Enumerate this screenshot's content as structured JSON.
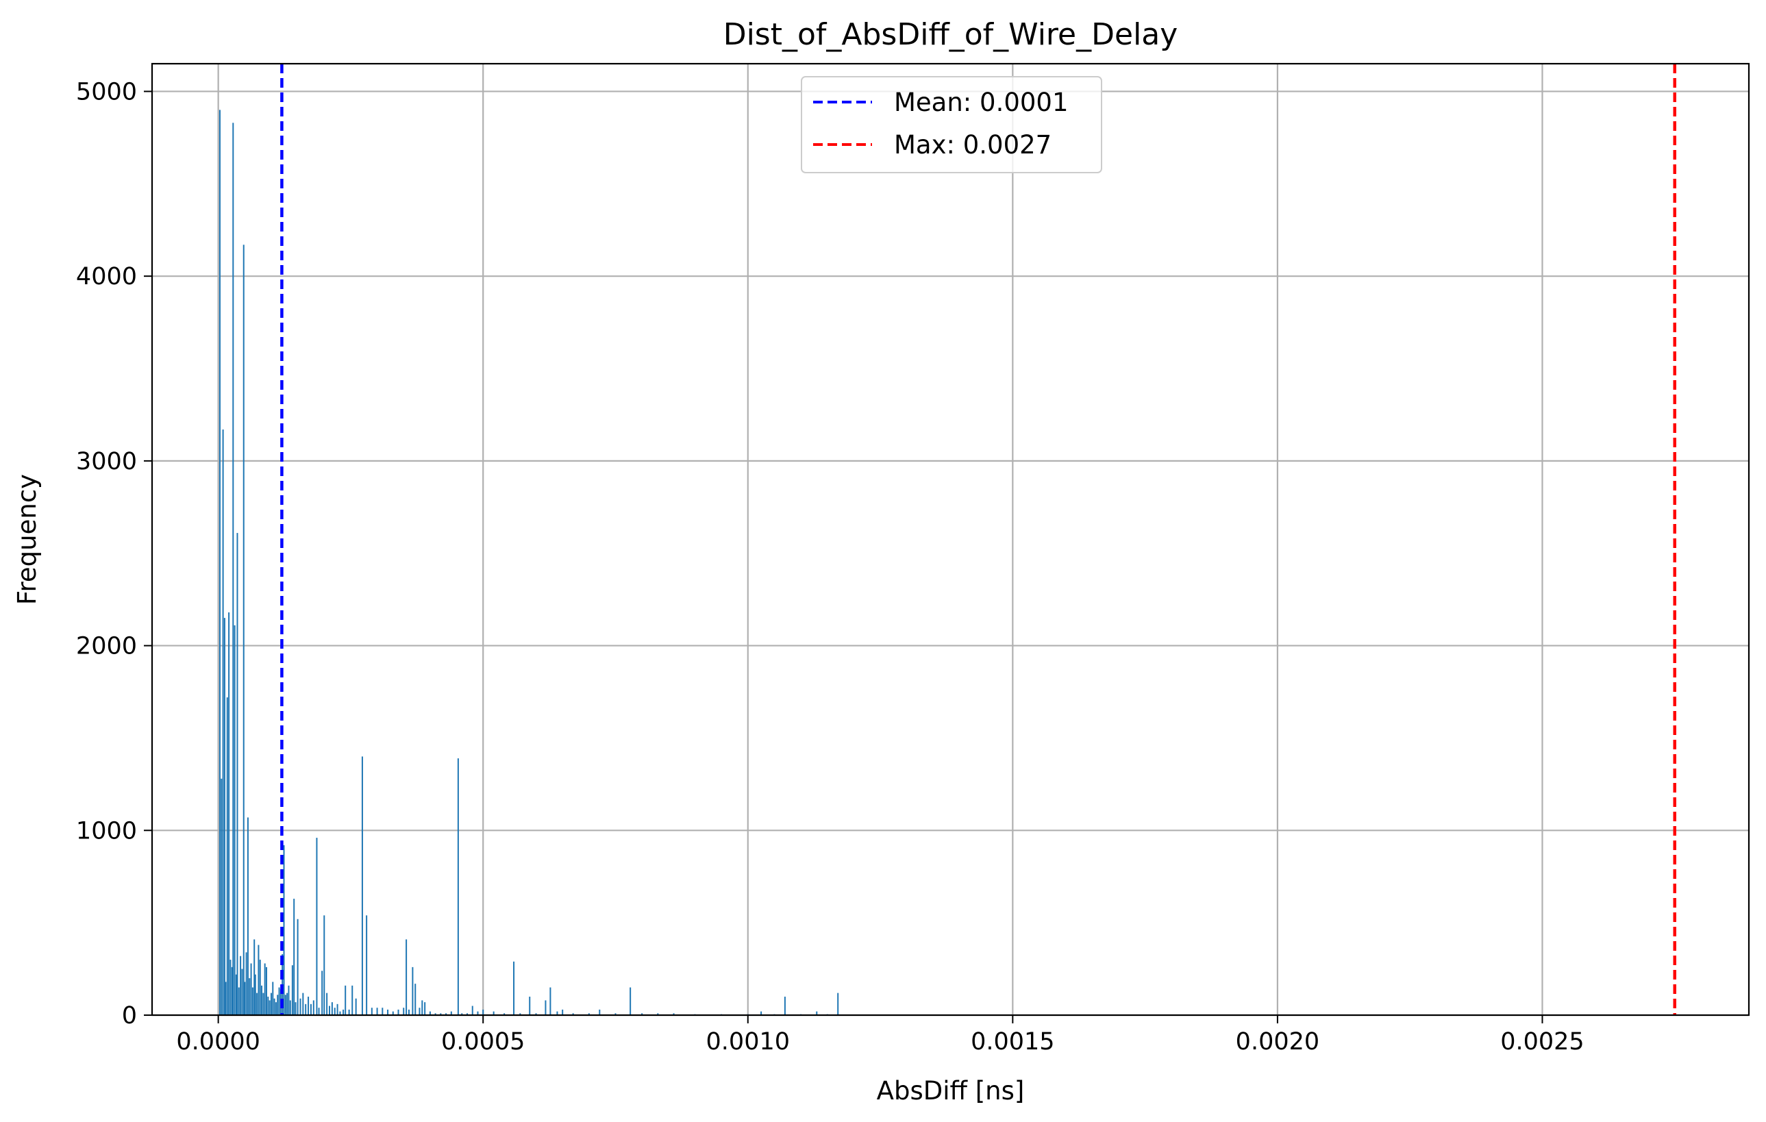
{
  "chart_data": {
    "type": "bar",
    "title": "Dist_of_AbsDiff_of_Wire_Delay",
    "xlabel": "AbsDiff [ns]",
    "ylabel": "Frequency",
    "xlim": [
      -0.000125,
      0.00289
    ],
    "ylim": [
      0,
      5150
    ],
    "xticks": [
      0.0,
      0.0005,
      0.001,
      0.0015,
      0.002,
      0.0025
    ],
    "xtick_labels": [
      "0.0000",
      "0.0005",
      "0.0010",
      "0.0015",
      "0.0020",
      "0.0025"
    ],
    "yticks": [
      0,
      1000,
      2000,
      3000,
      4000,
      5000
    ],
    "ytick_labels": [
      "0",
      "1000",
      "2000",
      "3000",
      "4000",
      "5000"
    ],
    "grid": true,
    "bar_color": "#1f77b4",
    "bar_width": 2.5e-06,
    "x": [
      3e-06,
      6e-06,
      9e-06,
      1.2e-05,
      1.4e-05,
      1.7e-05,
      2e-05,
      2.3e-05,
      2.6e-05,
      2.8e-05,
      3.1e-05,
      3.4e-05,
      3.6e-05,
      3.9e-05,
      4.2e-05,
      4.5e-05,
      4.8e-05,
      5e-05,
      5.3e-05,
      5.6e-05,
      5.9e-05,
      6.2e-05,
      6.5e-05,
      6.8e-05,
      7e-05,
      7.3e-05,
      7.6e-05,
      7.9e-05,
      8.2e-05,
      8.5e-05,
      8.8e-05,
      9.1e-05,
      9.4e-05,
      9.7e-05,
      0.0001,
      0.000103,
      0.000106,
      0.000109,
      0.000112,
      0.000115,
      0.000118,
      0.000121,
      0.000124,
      0.000127,
      0.00013,
      0.000133,
      0.000136,
      0.00014,
      0.000143,
      0.000146,
      0.00015,
      0.000155,
      0.00016,
      0.000165,
      0.00017,
      0.000175,
      0.00018,
      0.000186,
      0.00019,
      0.000196,
      0.0002,
      0.000205,
      0.00021,
      0.000215,
      0.00022,
      0.000225,
      0.00023,
      0.000236,
      0.00024,
      0.000247,
      0.000253,
      0.00026,
      0.000272,
      0.00028,
      0.00029,
      0.0003,
      0.00031,
      0.00032,
      0.00033,
      0.00034,
      0.00035,
      0.000355,
      0.00036,
      0.000367,
      0.000372,
      0.00038,
      0.000385,
      0.00039,
      0.0004,
      0.00041,
      0.00042,
      0.00043,
      0.00044,
      0.000453,
      0.00046,
      0.00047,
      0.00048,
      0.00049,
      0.0005,
      0.00052,
      0.00054,
      0.000558,
      0.00057,
      0.000588,
      0.0006,
      0.000618,
      0.000627,
      0.00064,
      0.00065,
      0.00067,
      0.0007,
      0.00072,
      0.00075,
      0.000778,
      0.0008,
      0.00083,
      0.00086,
      0.0009,
      0.00095,
      0.001,
      0.001025,
      0.00105,
      0.00107,
      0.0011,
      0.00113,
      0.00115,
      0.00117
    ],
    "values": [
      4900,
      1280,
      3170,
      2150,
      180,
      1720,
      2180,
      300,
      260,
      4830,
      2110,
      220,
      2610,
      150,
      320,
      250,
      4170,
      180,
      340,
      1070,
      200,
      280,
      150,
      410,
      220,
      120,
      380,
      300,
      160,
      120,
      280,
      260,
      100,
      80,
      120,
      180,
      90,
      70,
      110,
      150,
      140,
      330,
      920,
      110,
      120,
      160,
      80,
      270,
      630,
      70,
      520,
      90,
      120,
      60,
      100,
      60,
      80,
      960,
      40,
      240,
      540,
      120,
      50,
      70,
      40,
      60,
      20,
      30,
      160,
      30,
      160,
      90,
      1400,
      540,
      40,
      40,
      40,
      30,
      20,
      30,
      40,
      410,
      30,
      260,
      170,
      40,
      80,
      70,
      20,
      10,
      10,
      10,
      20,
      1390,
      10,
      10,
      50,
      20,
      30,
      20,
      10,
      290,
      10,
      100,
      10,
      80,
      150,
      20,
      30,
      10,
      10,
      30,
      10,
      150,
      10,
      10,
      10,
      5,
      5,
      5,
      20,
      5,
      100,
      5,
      20,
      5,
      120
    ],
    "reference_lines": [
      {
        "name": "Mean: 0.0001",
        "x": 0.00012,
        "color": "#0000ff"
      },
      {
        "name": "Max: 0.0027",
        "x": 0.00275,
        "color": "#ff0000"
      }
    ],
    "legend": {
      "placement": "upper-center",
      "entries": [
        "Mean: 0.0001",
        "Max: 0.0027"
      ]
    }
  }
}
